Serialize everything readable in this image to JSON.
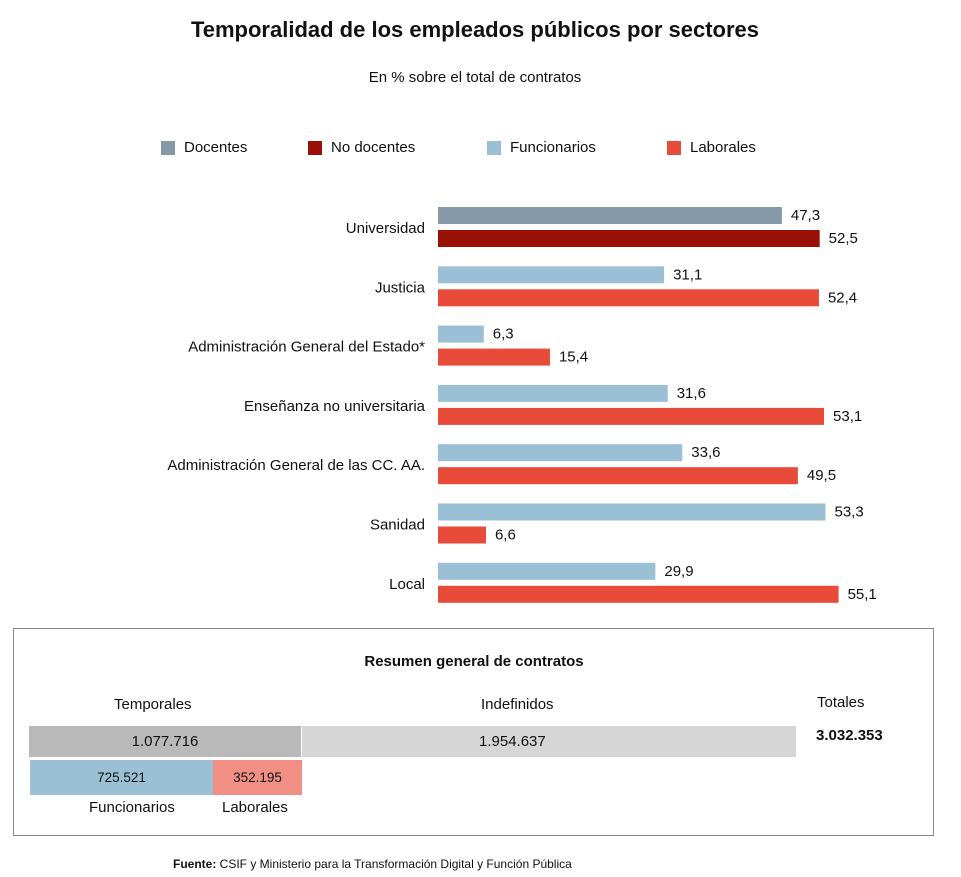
{
  "colors": {
    "docentes": "#8599a8",
    "no_docentes": "#9b1006",
    "funcionarios": "#9bc0d5",
    "laborales": "#e84b3a",
    "temporales_bar": "#b9b9b9",
    "indefinidos_bar": "#d5d5d5",
    "summary_funcionarios": "#9bc0d5",
    "summary_laborales": "#f28f85"
  },
  "chart_data": {
    "type": "bar",
    "orientation": "horizontal",
    "title": "Temporalidad de los empleados públicos por sectores",
    "subtitle": "En % sobre el total de contratos",
    "xlabel": "",
    "ylabel": "",
    "xlim": [
      0,
      60
    ],
    "grid": false,
    "legend_position": "top",
    "legend": [
      {
        "key": "docentes",
        "label": "Docentes"
      },
      {
        "key": "no_docentes",
        "label": "No docentes"
      },
      {
        "key": "funcionarios",
        "label": "Funcionarios"
      },
      {
        "key": "laborales",
        "label": "Laborales"
      }
    ],
    "categories": [
      "Universidad",
      "Justicia",
      "Administración General del Estado*",
      "Enseñanza no universitaria",
      "Administración General de las CC. AA.",
      "Sanidad",
      "Local"
    ],
    "groups": [
      {
        "category": "Universidad",
        "bars": [
          {
            "series": "docentes",
            "value": 47.3,
            "label": "47,3"
          },
          {
            "series": "no_docentes",
            "value": 52.5,
            "label": "52,5"
          }
        ]
      },
      {
        "category": "Justicia",
        "bars": [
          {
            "series": "funcionarios",
            "value": 31.1,
            "label": "31,1"
          },
          {
            "series": "laborales",
            "value": 52.4,
            "label": "52,4"
          }
        ]
      },
      {
        "category": "Administración General del Estado*",
        "bars": [
          {
            "series": "funcionarios",
            "value": 6.3,
            "label": "6,3"
          },
          {
            "series": "laborales",
            "value": 15.4,
            "label": "15,4"
          }
        ]
      },
      {
        "category": "Enseñanza no universitaria",
        "bars": [
          {
            "series": "funcionarios",
            "value": 31.6,
            "label": "31,6"
          },
          {
            "series": "laborales",
            "value": 53.1,
            "label": "53,1"
          }
        ]
      },
      {
        "category": "Administración General de las CC. AA.",
        "bars": [
          {
            "series": "funcionarios",
            "value": 33.6,
            "label": "33,6"
          },
          {
            "series": "laborales",
            "value": 49.5,
            "label": "49,5"
          }
        ]
      },
      {
        "category": "Sanidad",
        "bars": [
          {
            "series": "funcionarios",
            "value": 53.3,
            "label": "53,3"
          },
          {
            "series": "laborales",
            "value": 6.6,
            "label": "6,6"
          }
        ]
      },
      {
        "category": "Local",
        "bars": [
          {
            "series": "funcionarios",
            "value": 29.9,
            "label": "29,9"
          },
          {
            "series": "laborales",
            "value": 55.1,
            "label": "55,1"
          }
        ]
      }
    ]
  },
  "summary": {
    "title": "Resumen general de contratos",
    "temporales_label": "Temporales",
    "indefinidos_label": "Indefinidos",
    "totales_label": "Totales",
    "temporales_value": "1.077.716",
    "indefinidos_value": "1.954.637",
    "totales_value": "3.032.353",
    "funcionarios_value": "725.521",
    "laborales_value": "352.195",
    "funcionarios_label": "Funcionarios",
    "laborales_label": "Laborales"
  },
  "footer": {
    "source_label": "Fuente:",
    "source_text": " CSIF y Ministerio para la Transformación Digital y Función Pública"
  }
}
